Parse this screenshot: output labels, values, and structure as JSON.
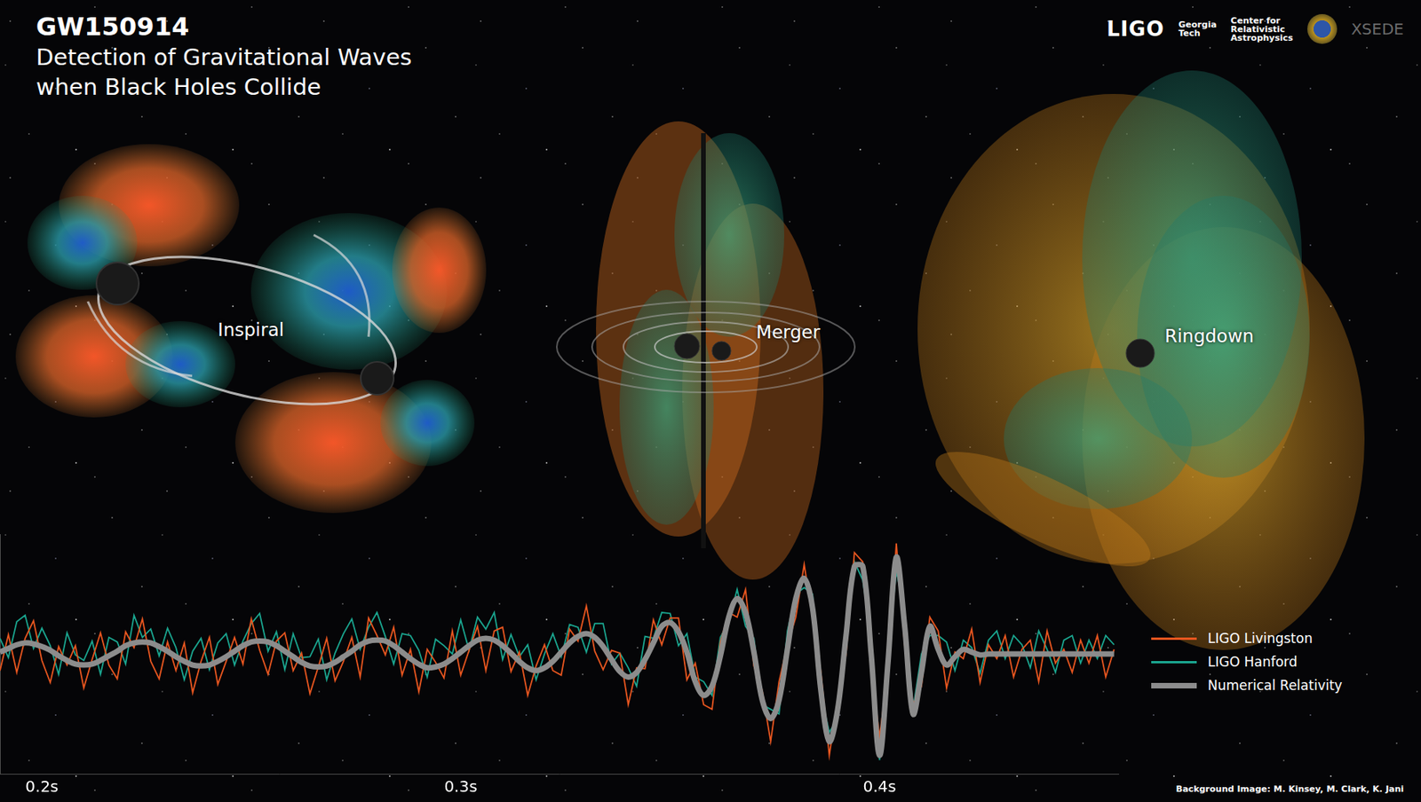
{
  "chart_data": {
    "type": "line",
    "title": "GW150914",
    "subtitle": [
      "Detection of Gravitational Waves",
      "when Black Holes Collide"
    ],
    "annotations": [
      "Inspiral",
      "Merger",
      "Ringdown"
    ],
    "x": [
      0.19,
      0.192,
      0.194,
      0.196,
      0.198,
      0.2,
      0.202,
      0.204,
      0.206,
      0.208,
      0.21,
      0.212,
      0.214,
      0.216,
      0.218,
      0.22,
      0.222,
      0.224,
      0.226,
      0.228,
      0.23,
      0.232,
      0.234,
      0.236,
      0.238,
      0.24,
      0.242,
      0.244,
      0.246,
      0.248,
      0.25,
      0.252,
      0.254,
      0.256,
      0.258,
      0.26,
      0.262,
      0.264,
      0.266,
      0.268,
      0.27,
      0.272,
      0.274,
      0.276,
      0.278,
      0.28,
      0.282,
      0.284,
      0.286,
      0.288,
      0.29,
      0.292,
      0.294,
      0.296,
      0.298,
      0.3,
      0.302,
      0.304,
      0.306,
      0.308,
      0.31,
      0.312,
      0.314,
      0.316,
      0.318,
      0.32,
      0.322,
      0.324,
      0.326,
      0.328,
      0.33,
      0.332,
      0.334,
      0.336,
      0.338,
      0.34,
      0.342,
      0.344,
      0.346,
      0.348,
      0.35,
      0.352,
      0.354,
      0.356,
      0.358,
      0.36,
      0.362,
      0.364,
      0.366,
      0.368,
      0.37,
      0.372,
      0.374,
      0.376,
      0.378,
      0.38,
      0.382,
      0.384,
      0.386,
      0.388,
      0.39,
      0.392,
      0.394,
      0.396,
      0.398,
      0.4,
      0.402,
      0.404,
      0.406,
      0.408,
      0.41,
      0.412,
      0.414,
      0.416,
      0.418,
      0.42,
      0.422,
      0.424,
      0.426,
      0.428,
      0.43,
      0.432,
      0.434,
      0.436,
      0.438,
      0.44,
      0.442,
      0.444,
      0.446,
      0.448,
      0.45,
      0.452,
      0.454,
      0.456
    ],
    "xlim": [
      0.19,
      0.457
    ],
    "xticks": [
      {
        "value": 0.2,
        "label": "0.2s"
      },
      {
        "value": 0.3,
        "label": "0.3s"
      },
      {
        "value": 0.4,
        "label": "0.4s"
      }
    ],
    "ylim": [
      -1.3,
      1.3
    ],
    "grid": false,
    "tick_labels": "x",
    "legend": "right",
    "series": [
      {
        "name": "LIGO Livingston",
        "color": "#e8561f",
        "values": [
          -0.18,
          0.21,
          -0.2,
          0.17,
          0.36,
          -0.07,
          -0.31,
          0.08,
          -0.12,
          0.09,
          -0.37,
          -0.06,
          0.23,
          -0.12,
          -0.27,
          0.24,
          0.07,
          0.38,
          -0.08,
          -0.27,
          0.13,
          -0.18,
          0.12,
          -0.42,
          -0.08,
          0.18,
          -0.33,
          -0.08,
          0.18,
          -0.11,
          0.38,
          0.04,
          -0.22,
          0.14,
          0.23,
          -0.18,
          0.01,
          -0.43,
          -0.14,
          0.17,
          -0.29,
          -0.08,
          0.18,
          -0.25,
          0.39,
          0.2,
          -0.01,
          0.29,
          -0.23,
          0.05,
          -0.41,
          0.05,
          -0.09,
          -0.26,
          0.25,
          -0.23,
          0.04,
          0.3,
          -0.18,
          0.25,
          0.29,
          -0.19,
          0.02,
          -0.45,
          -0.13,
          0.1,
          -0.18,
          -0.23,
          0.27,
          0.14,
          0.52,
          0.03,
          -0.17,
          0.04,
          0.01,
          -0.55,
          -0.15,
          -0.16,
          0.37,
          0.1,
          0.39,
          0.39,
          -0.28,
          -0.1,
          -0.55,
          -0.6,
          0.13,
          0.45,
          0.4,
          0.7,
          -0.13,
          -0.4,
          -0.95,
          -0.3,
          0.1,
          0.4,
          0.97,
          0.4,
          -0.2,
          -1.1,
          -0.5,
          0.0,
          1.1,
          1.0,
          -0.15,
          -0.9,
          -0.2,
          1.2,
          0.1,
          -0.55,
          -0.35,
          0.4,
          0.25,
          -0.37,
          0.02,
          -0.05,
          0.27,
          -0.31,
          0.1,
          -0.05,
          0.2,
          -0.25,
          0.05,
          0.15,
          -0.3,
          0.25,
          -0.1,
          0.05,
          -0.2,
          0.15,
          -0.1,
          0.2,
          -0.25,
          0.05
        ]
      },
      {
        "name": "LIGO Hanford",
        "color": "#1aa58f",
        "values": [
          0.17,
          -0.04,
          0.35,
          0.42,
          0.06,
          0.28,
          0.09,
          -0.22,
          0.23,
          -0.01,
          -0.07,
          0.14,
          -0.22,
          0.18,
          0.13,
          -0.11,
          0.42,
          0.18,
          0.27,
          -0.02,
          0.28,
          0.07,
          -0.28,
          0.03,
          0.17,
          -0.17,
          0.12,
          0.22,
          -0.12,
          0.14,
          0.33,
          0.44,
          0.03,
          0.24,
          -0.17,
          0.22,
          -0.04,
          -0.03,
          0.16,
          -0.28,
          0.01,
          0.22,
          0.38,
          0.05,
          0.29,
          0.45,
          0.19,
          -0.11,
          0.22,
          0.2,
          0.04,
          -0.25,
          0.16,
          0.09,
          0.0,
          0.37,
          0.04,
          0.4,
          0.27,
          0.45,
          -0.06,
          0.21,
          -0.03,
          0.1,
          -0.28,
          0.0,
          0.22,
          -0.03,
          0.32,
          0.29,
          0.02,
          0.33,
          0.33,
          -0.11,
          0.01,
          -0.15,
          -0.35,
          0.19,
          0.17,
          0.45,
          0.44,
          0.09,
          0.22,
          -0.25,
          -0.3,
          -0.45,
          0.18,
          0.35,
          0.7,
          0.3,
          0.17,
          -0.55,
          -0.6,
          -0.65,
          0.25,
          0.65,
          0.72,
          0.65,
          -0.45,
          -0.85,
          -0.7,
          0.35,
          1.0,
          0.8,
          0.2,
          -1.15,
          0.0,
          0.9,
          0.45,
          -0.6,
          0.0,
          0.2,
          0.2,
          0.13,
          -0.18,
          0.15,
          0.07,
          -0.21,
          0.15,
          0.25,
          -0.05,
          0.2,
          0.1,
          -0.15,
          0.25,
          0.05,
          -0.2,
          0.15,
          0.2,
          -0.1,
          0.15,
          -0.05,
          0.2,
          0.1
        ]
      },
      {
        "name": "Numerical Relativity",
        "color": "#8c8c8c",
        "values": [
          0.02,
          0.06,
          0.1,
          0.12,
          0.11,
          0.08,
          0.04,
          -0.02,
          -0.07,
          -0.11,
          -0.12,
          -0.11,
          -0.07,
          -0.02,
          0.03,
          0.09,
          0.12,
          0.13,
          0.12,
          0.08,
          0.03,
          -0.03,
          -0.08,
          -0.12,
          -0.13,
          -0.12,
          -0.08,
          -0.03,
          0.03,
          0.09,
          0.13,
          0.14,
          0.13,
          0.09,
          0.03,
          -0.03,
          -0.09,
          -0.13,
          -0.14,
          -0.13,
          -0.09,
          -0.03,
          0.03,
          0.1,
          0.14,
          0.15,
          0.14,
          0.09,
          0.02,
          -0.05,
          -0.11,
          -0.15,
          -0.14,
          -0.11,
          -0.05,
          0.02,
          0.09,
          0.15,
          0.17,
          0.15,
          0.09,
          0.01,
          -0.08,
          -0.15,
          -0.18,
          -0.15,
          -0.08,
          0.02,
          0.12,
          0.19,
          0.22,
          0.18,
          0.08,
          -0.06,
          -0.19,
          -0.25,
          -0.2,
          -0.06,
          0.12,
          0.3,
          0.34,
          0.24,
          0.02,
          -0.3,
          -0.45,
          -0.35,
          -0.02,
          0.4,
          0.6,
          0.45,
          0.02,
          -0.5,
          -0.7,
          -0.5,
          0.05,
          0.6,
          0.82,
          0.5,
          -0.4,
          -0.95,
          -0.6,
          0.2,
          0.95,
          0.95,
          0.0,
          -1.1,
          -0.1,
          1.05,
          0.3,
          -0.65,
          -0.2,
          0.3,
          0.05,
          -0.12,
          -0.03,
          0.05,
          0.02,
          -0.01,
          0.0,
          0.0,
          0.0,
          0.0,
          0.0,
          0.0,
          0.0,
          0.0,
          0.0,
          0.0,
          0.0,
          0.0,
          0.0,
          0.0,
          0.0,
          0.0
        ]
      }
    ]
  },
  "logos": [
    [
      "LIGO"
    ],
    [
      "Georgia",
      "Tech"
    ],
    [
      "Center for",
      "Relativistic",
      "Astrophysics"
    ],
    [
      "XSEDE"
    ]
  ],
  "credit": "Background Image:  M. Kinsey, M. Clark, K. Jani"
}
